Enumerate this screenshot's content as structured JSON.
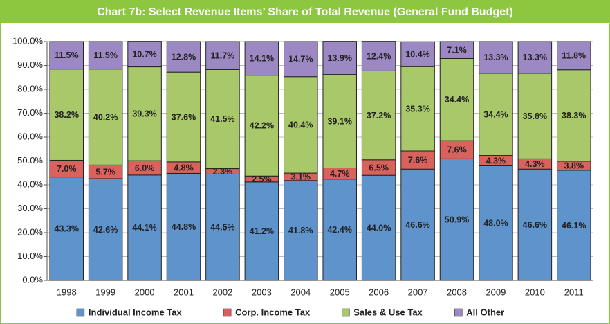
{
  "chart_data": {
    "type": "stacked_bar",
    "title": "Chart 7b: Select Revenue Items’ Share of Total Revenue (General Fund Budget)",
    "categories": [
      "1998",
      "1999",
      "2000",
      "2001",
      "2002",
      "2003",
      "2004",
      "2005",
      "2006",
      "2007",
      "2008",
      "2009",
      "2010",
      "2011"
    ],
    "series": [
      {
        "name": "Individual Income Tax",
        "color": "#5f93cc",
        "values": [
          43.3,
          42.6,
          44.1,
          44.8,
          44.5,
          41.2,
          41.8,
          42.4,
          44.0,
          46.6,
          50.9,
          48.0,
          46.6,
          46.1
        ],
        "value_labels": [
          "43.3%",
          "42.6%",
          "44.1%",
          "44.8%",
          "44.5%",
          "41.2%",
          "41.8%",
          "42.4%",
          "44.0%",
          "46.6%",
          "50.9%",
          "48.0%",
          "46.6%",
          "46.1%"
        ]
      },
      {
        "name": "Corp. Income Tax",
        "color": "#d9625c",
        "values": [
          7.0,
          5.7,
          6.0,
          4.8,
          2.3,
          2.5,
          3.1,
          4.7,
          6.5,
          7.6,
          7.6,
          4.3,
          4.3,
          3.8
        ],
        "value_labels": [
          "7.0%",
          "5.7%",
          "6.0%",
          "4.8%",
          "2.3%",
          "2.5%",
          "3.1%",
          "4.7%",
          "6.5%",
          "7.6%",
          "7.6%",
          "4.3%",
          "4.3%",
          "3.8%"
        ]
      },
      {
        "name": "Sales & Use Tax",
        "color": "#a9c86a",
        "values": [
          38.2,
          40.2,
          39.3,
          37.6,
          41.5,
          42.2,
          40.4,
          39.1,
          37.2,
          35.3,
          34.4,
          34.4,
          35.8,
          38.3
        ],
        "value_labels": [
          "38.2%",
          "40.2%",
          "39.3%",
          "37.6%",
          "41.5%",
          "42.2%",
          "40.4%",
          "39.1%",
          "37.2%",
          "35.3%",
          "34.4%",
          "34.4%",
          "35.8%",
          "38.3%"
        ]
      },
      {
        "name": "All Other",
        "color": "#9c88c3",
        "values": [
          11.5,
          11.5,
          10.7,
          12.8,
          11.7,
          14.1,
          14.7,
          13.9,
          12.4,
          10.4,
          7.1,
          13.3,
          13.3,
          11.8
        ],
        "value_labels": [
          "11.5%",
          "11.5%",
          "10.7%",
          "12.8%",
          "11.7%",
          "14.1%",
          "14.7%",
          "13.9%",
          "12.4%",
          "10.4%",
          "7.1%",
          "13.3%",
          "13.3%",
          "11.8%"
        ]
      }
    ],
    "ylim": [
      0,
      100
    ],
    "yticks": [
      {
        "value": 0,
        "label": "0.0%"
      },
      {
        "value": 10,
        "label": "10.0%"
      },
      {
        "value": 20,
        "label": "20.0%"
      },
      {
        "value": 30,
        "label": "30.0%"
      },
      {
        "value": 40,
        "label": "40.0%"
      },
      {
        "value": 50,
        "label": "50.0%"
      },
      {
        "value": 60,
        "label": "60.0%"
      },
      {
        "value": 70,
        "label": "70.0%"
      },
      {
        "value": 80,
        "label": "80.0%"
      },
      {
        "value": 90,
        "label": "90.0%"
      },
      {
        "value": 100,
        "label": "100.0%"
      }
    ],
    "grid": true,
    "legend": "bottom"
  }
}
